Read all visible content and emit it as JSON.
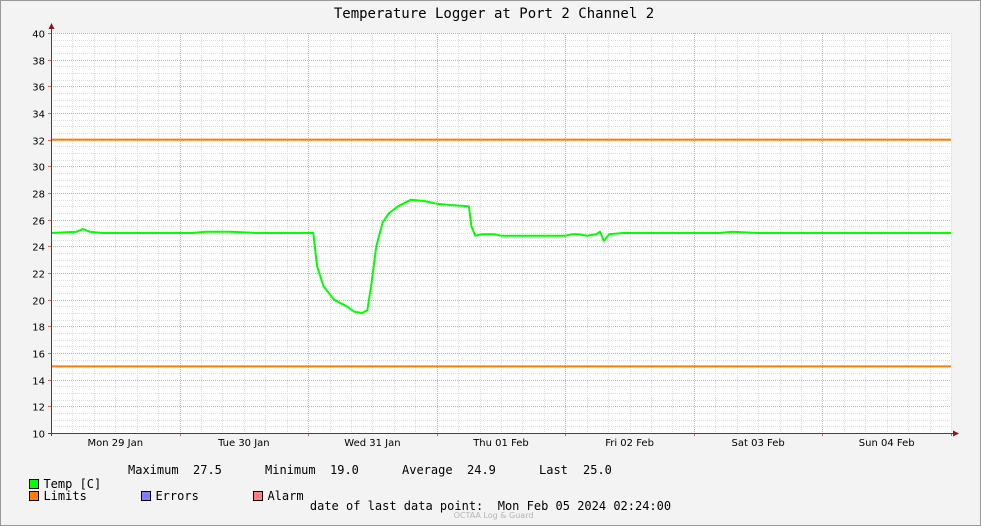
{
  "chart_data": {
    "type": "line",
    "title": "Temperature Logger at Port 2 Channel 2",
    "ylim": [
      10,
      40
    ],
    "yticks": [
      10,
      12,
      14,
      16,
      18,
      20,
      22,
      24,
      26,
      28,
      30,
      32,
      34,
      36,
      38,
      40
    ],
    "x_categories": [
      "Mon 29 Jan",
      "Tue 30 Jan",
      "Wed 31 Jan",
      "Thu 01 Feb",
      "Fri 02 Feb",
      "Sat 03 Feb",
      "Sun 04 Feb"
    ],
    "xlim_days": [
      0,
      7
    ],
    "limits": {
      "upper": 32,
      "lower": 15,
      "color": "#ff7f00"
    },
    "series": [
      {
        "name": "Temp [C]",
        "color": "#00ff00",
        "points": [
          [
            0.0,
            25.0
          ],
          [
            0.2,
            25.1
          ],
          [
            0.25,
            25.3
          ],
          [
            0.3,
            25.1
          ],
          [
            0.4,
            25.0
          ],
          [
            0.7,
            25.0
          ],
          [
            0.9,
            25.0
          ],
          [
            1.1,
            25.0
          ],
          [
            1.2,
            25.1
          ],
          [
            1.4,
            25.1
          ],
          [
            1.6,
            25.0
          ],
          [
            1.9,
            25.0
          ],
          [
            2.04,
            25.0
          ],
          [
            2.07,
            22.5
          ],
          [
            2.12,
            21.0
          ],
          [
            2.2,
            20.0
          ],
          [
            2.3,
            19.5
          ],
          [
            2.36,
            19.1
          ],
          [
            2.42,
            19.0
          ],
          [
            2.46,
            19.2
          ],
          [
            2.49,
            21.0
          ],
          [
            2.53,
            24.0
          ],
          [
            2.58,
            25.8
          ],
          [
            2.63,
            26.5
          ],
          [
            2.7,
            27.0
          ],
          [
            2.8,
            27.5
          ],
          [
            2.9,
            27.4
          ],
          [
            3.0,
            27.2
          ],
          [
            3.1,
            27.1
          ],
          [
            3.25,
            27.0
          ],
          [
            3.27,
            25.5
          ],
          [
            3.3,
            24.8
          ],
          [
            3.35,
            24.9
          ],
          [
            3.45,
            24.9
          ],
          [
            3.5,
            24.8
          ],
          [
            3.8,
            24.8
          ],
          [
            4.0,
            24.8
          ],
          [
            4.05,
            24.9
          ],
          [
            4.1,
            24.9
          ],
          [
            4.17,
            24.8
          ],
          [
            4.24,
            24.9
          ],
          [
            4.27,
            25.1
          ],
          [
            4.3,
            24.4
          ],
          [
            4.34,
            24.9
          ],
          [
            4.45,
            25.0
          ],
          [
            4.7,
            25.0
          ],
          [
            5.0,
            25.0
          ],
          [
            5.2,
            25.0
          ],
          [
            5.3,
            25.1
          ],
          [
            5.5,
            25.0
          ],
          [
            5.8,
            25.0
          ],
          [
            6.0,
            25.0
          ],
          [
            6.2,
            25.0
          ],
          [
            6.5,
            25.0
          ],
          [
            7.0,
            25.0
          ]
        ]
      }
    ]
  },
  "legend": {
    "temp": {
      "label": "Temp [C]",
      "color": "#00ff00"
    },
    "stats": {
      "maximum_label": "Maximum",
      "maximum_value": "27.5",
      "minimum_label": "Minimum",
      "minimum_value": "19.0",
      "average_label": "Average",
      "average_value": "24.9",
      "last_label": "Last",
      "last_value": "25.0"
    },
    "limits": {
      "label": "Limits",
      "color": "#ff7f00"
    },
    "errors": {
      "label": "Errors",
      "color": "#7f7fff"
    },
    "alarm": {
      "label": "Alarm",
      "color": "#ff7f7f"
    }
  },
  "footer": {
    "date_label": "date of last data point:",
    "date_value": "Mon Feb 05 2024 02:24:00",
    "watermark": "OCTAA Log & Guard"
  }
}
